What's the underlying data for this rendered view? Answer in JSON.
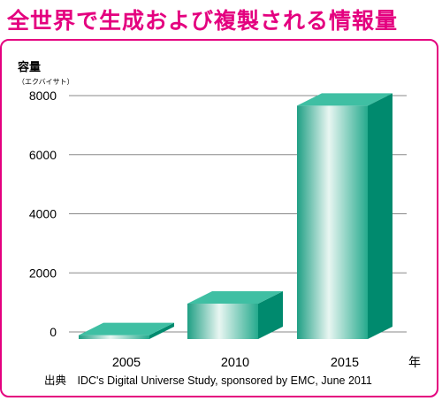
{
  "title": "全世界で生成および複製される情報量",
  "source": "出典　IDC's Digital Universe Study, sponsored by EMC, June 2011",
  "chart_data": {
    "type": "bar",
    "title": "全世界で生成および複製される情報量",
    "ylabel": "容量",
    "ylabel_unit": "（エクバイサト）",
    "xlabel": "年",
    "categories": [
      "2005",
      "2010",
      "2015"
    ],
    "values": [
      130,
      1200,
      7900
    ],
    "ylim": [
      0,
      8000
    ],
    "yticks": [
      0,
      2000,
      4000,
      6000,
      8000
    ],
    "ytick_labels": [
      "0",
      "2000",
      "4000",
      "6000",
      "8000"
    ],
    "grid": true,
    "colors": {
      "front_light": "#e8f5f1",
      "front_dark": "#23a88c",
      "top": "#3fbfa3",
      "side": "#008a6e"
    }
  }
}
